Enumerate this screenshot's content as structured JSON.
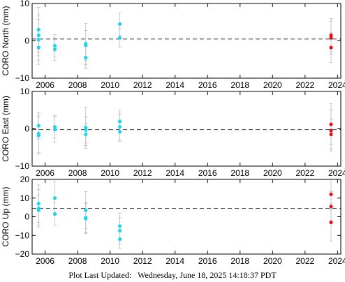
{
  "footer": {
    "label": "Plot Last Updated:",
    "timestamp": "Wednesday, June 18, 2025 14:18:37 PDT"
  },
  "colors": {
    "past_points": "#1ad7ef",
    "recent_points": "#e3141a",
    "error_bars": "#bdbdbd",
    "reference_line": "#444444",
    "frame": "#000000"
  },
  "chart_data": [
    {
      "type": "scatter",
      "title": "",
      "ylabel": "CORO North (mm)",
      "xlim": [
        2005.2,
        2024.2
      ],
      "ylim": [
        -10,
        10
      ],
      "yticks": [
        -10,
        0,
        10
      ],
      "xticks": [
        2006,
        2008,
        2010,
        2012,
        2014,
        2016,
        2018,
        2020,
        2022,
        2024
      ],
      "reference_y": 0.5,
      "grid": false,
      "legend": "none",
      "series": [
        {
          "points": [
            {
              "x": 2005.6,
              "y": 3.0,
              "err": 6.0
            },
            {
              "x": 2005.6,
              "y": 1.5,
              "err": 5.5
            },
            {
              "x": 2005.6,
              "y": 0.3,
              "err": 5.5
            },
            {
              "x": 2005.6,
              "y": -1.8,
              "err": 4.5
            },
            {
              "x": 2006.6,
              "y": -1.3,
              "err": 3.0
            },
            {
              "x": 2006.6,
              "y": -2.3,
              "err": 3.0
            },
            {
              "x": 2008.5,
              "y": -0.8,
              "err": 5.5
            },
            {
              "x": 2008.5,
              "y": -1.2,
              "err": 4.0
            },
            {
              "x": 2008.5,
              "y": -4.5,
              "err": 3.0
            },
            {
              "x": 2010.6,
              "y": 4.5,
              "err": 3.0
            },
            {
              "x": 2010.6,
              "y": 0.8,
              "err": 2.5
            }
          ]
        },
        {
          "points": [
            {
              "x": 2023.6,
              "y": 1.5,
              "err": 4.5
            },
            {
              "x": 2023.6,
              "y": 0.8,
              "err": 4.5
            },
            {
              "x": 2023.6,
              "y": -1.8,
              "err": 4.0
            }
          ]
        }
      ]
    },
    {
      "type": "scatter",
      "title": "",
      "ylabel": "CORO East (mm)",
      "xlim": [
        2005.2,
        2024.2
      ],
      "ylim": [
        -10,
        10
      ],
      "yticks": [
        -10,
        0,
        10
      ],
      "xticks": [
        2006,
        2008,
        2010,
        2012,
        2014,
        2016,
        2018,
        2020,
        2022,
        2024
      ],
      "reference_y": -0.2,
      "grid": false,
      "legend": "none",
      "series": [
        {
          "points": [
            {
              "x": 2005.6,
              "y": 0.8,
              "err": 3.5
            },
            {
              "x": 2005.6,
              "y": -1.3,
              "err": 5.0
            },
            {
              "x": 2005.6,
              "y": -1.8,
              "err": 5.0
            },
            {
              "x": 2006.6,
              "y": 0.5,
              "err": 3.0
            },
            {
              "x": 2006.6,
              "y": -0.2,
              "err": 3.5
            },
            {
              "x": 2008.5,
              "y": 0.3,
              "err": 5.5
            },
            {
              "x": 2008.5,
              "y": -0.3,
              "err": 3.5
            },
            {
              "x": 2008.5,
              "y": -1.5,
              "err": 3.0
            },
            {
              "x": 2010.6,
              "y": 2.0,
              "err": 3.0
            },
            {
              "x": 2010.6,
              "y": 0.5,
              "err": 3.5
            },
            {
              "x": 2010.6,
              "y": -0.8,
              "err": 2.5
            }
          ]
        },
        {
          "points": [
            {
              "x": 2023.6,
              "y": 1.2,
              "err": 5.5
            },
            {
              "x": 2023.6,
              "y": -0.5,
              "err": 5.5
            },
            {
              "x": 2023.6,
              "y": -1.5,
              "err": 4.0
            }
          ]
        }
      ]
    },
    {
      "type": "scatter",
      "title": "",
      "ylabel": "CORO Up (mm)",
      "xlim": [
        2005.2,
        2024.2
      ],
      "ylim": [
        -20,
        20
      ],
      "yticks": [
        -20,
        -10,
        0,
        10,
        20
      ],
      "xticks": [
        2006,
        2008,
        2010,
        2012,
        2014,
        2016,
        2018,
        2020,
        2022,
        2024
      ],
      "reference_y": 4.5,
      "grid": false,
      "legend": "none",
      "series": [
        {
          "points": [
            {
              "x": 2005.6,
              "y": 7.0,
              "err": 10.0
            },
            {
              "x": 2005.6,
              "y": 4.5,
              "err": 10.0
            },
            {
              "x": 2005.6,
              "y": 3.5,
              "err": 8.0
            },
            {
              "x": 2006.6,
              "y": 10.0,
              "err": 9.0
            },
            {
              "x": 2006.6,
              "y": 1.5,
              "err": 6.0
            },
            {
              "x": 2008.5,
              "y": 3.5,
              "err": 10.0
            },
            {
              "x": 2008.5,
              "y": -0.5,
              "err": 8.0
            },
            {
              "x": 2008.5,
              "y": -1.0,
              "err": 8.0
            },
            {
              "x": 2010.6,
              "y": -5.0,
              "err": 7.0
            },
            {
              "x": 2010.6,
              "y": -7.5,
              "err": 7.0
            },
            {
              "x": 2010.6,
              "y": -12.0,
              "err": 5.0
            }
          ]
        },
        {
          "points": [
            {
              "x": 2023.6,
              "y": 12.0,
              "err": 8.0
            },
            {
              "x": 2023.6,
              "y": 5.5,
              "err": 8.0
            },
            {
              "x": 2023.6,
              "y": -3.0,
              "err": 10.0
            }
          ]
        }
      ]
    }
  ]
}
